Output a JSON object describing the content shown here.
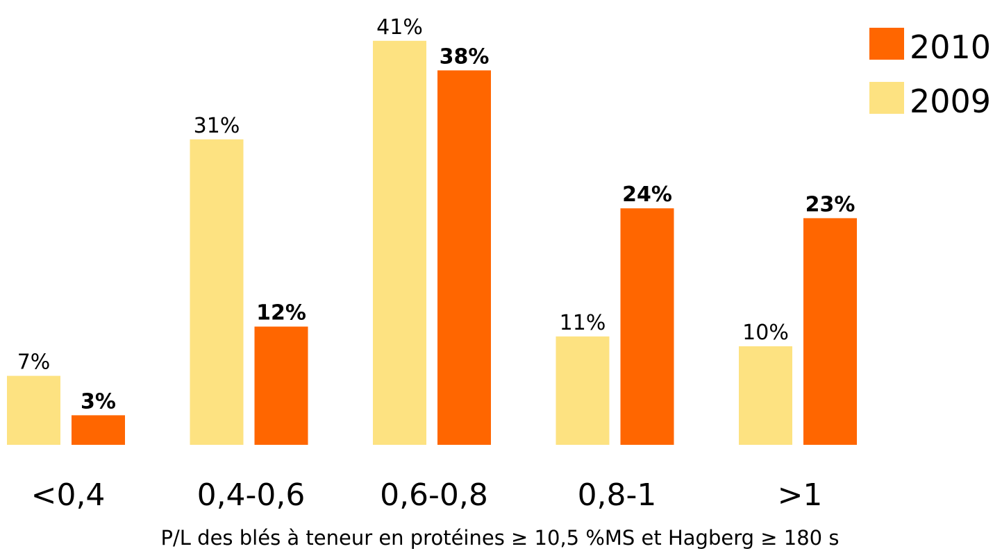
{
  "chart_data": {
    "type": "bar",
    "x_label": "P/L des blés à teneur en protéines ≥ 10,5 %MS et Hagberg ≥ 180 s",
    "categories": [
      "<0,4",
      "0,4-0,6",
      "0,6-0,8",
      "0,8-1",
      ">1"
    ],
    "series": [
      {
        "name": "2009",
        "color": "#fde281",
        "values": [
          7,
          31,
          41,
          11,
          10
        ],
        "value_labels": [
          "7%",
          "31%",
          "41%",
          "11%",
          "10%"
        ]
      },
      {
        "name": "2010",
        "color": "#ff6600",
        "values": [
          3,
          12,
          38,
          24,
          23
        ],
        "value_labels": [
          "3%",
          "12%",
          "38%",
          "24%",
          "23%"
        ]
      }
    ],
    "legend": "top-right"
  }
}
